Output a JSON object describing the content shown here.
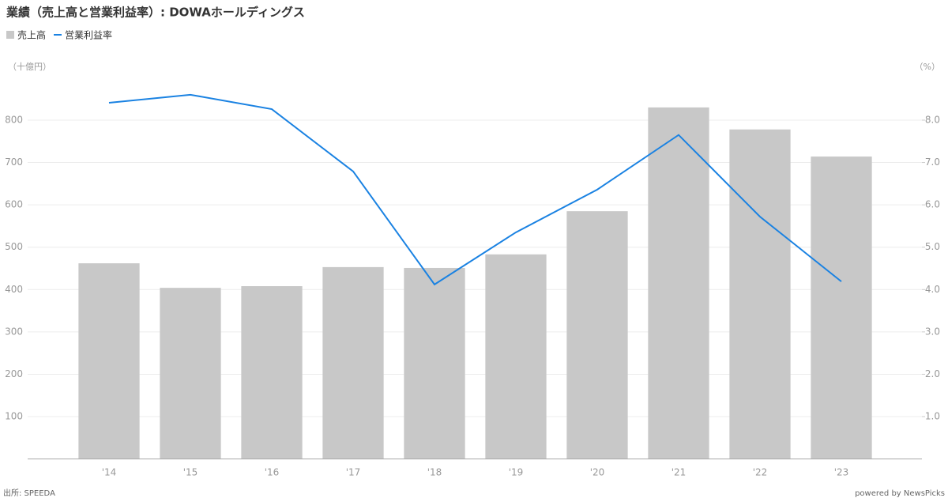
{
  "chart_data": {
    "type": "bar",
    "title": "業績（売上高と営業利益率）: DOWAホールディングス",
    "y_label": "（十億円）",
    "y2_label": "（%）",
    "source": "出所: SPEEDA",
    "credit": "powered by NewsPicks",
    "categories": [
      "'14",
      "'15",
      "'16",
      "'17",
      "'18",
      "'19",
      "'20",
      "'21",
      "'22",
      "'23"
    ],
    "series": [
      {
        "name": "売上高",
        "type": "bar",
        "color": "#c8c8c8",
        "values": [
          462,
          404,
          408,
          453,
          451,
          483,
          585,
          830,
          778,
          714
        ]
      },
      {
        "name": "営業利益率",
        "type": "line",
        "axis": "y2",
        "color": "#1a82e2",
        "values": [
          8.41,
          8.6,
          8.26,
          6.79,
          4.12,
          5.35,
          6.36,
          7.65,
          5.72,
          4.19
        ]
      }
    ],
    "ylim": [
      0,
      900
    ],
    "yticks": [
      100,
      200,
      300,
      400,
      500,
      600,
      700,
      800
    ],
    "y2lim": [
      0,
      9
    ],
    "y2ticks": [
      {
        "value": 1,
        "label": "1.0"
      },
      {
        "value": 2,
        "label": "2.0"
      },
      {
        "value": 3,
        "label": "3.0"
      },
      {
        "value": 4,
        "label": "4.0"
      },
      {
        "value": 5,
        "label": "5.0"
      },
      {
        "value": 6,
        "label": "6.0"
      },
      {
        "value": 7,
        "label": "7.0"
      },
      {
        "value": 8,
        "label": "8.0"
      }
    ],
    "grid": true,
    "legend": "top-left"
  }
}
